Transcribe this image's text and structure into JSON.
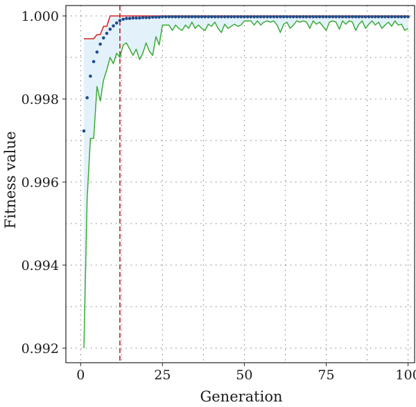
{
  "chart_data": {
    "type": "line",
    "title": "",
    "xlabel": "Generation",
    "ylabel": "Fitness value",
    "xlim": [
      -4.5,
      102
    ],
    "ylim": [
      0.99165,
      1.00025
    ],
    "grid": true,
    "x_ticks": [
      0,
      25,
      50,
      75,
      100
    ],
    "x_tick_labels": [
      "0",
      "25",
      "50",
      "75",
      "100"
    ],
    "y_ticks": [
      0.992,
      0.994,
      0.996,
      0.998,
      1.0
    ],
    "y_tick_labels": [
      "0.992",
      "0.994",
      "0.996",
      "0.998",
      "1.000"
    ],
    "vertical_marker": {
      "x": 12,
      "color": "#b22222",
      "style": "dashed"
    },
    "fill_color": "#e3f1fa",
    "colors": {
      "max": "#d42020",
      "mean": "#1f4e8c",
      "min": "#3aaa35"
    },
    "series": [
      {
        "key": "max",
        "style": "line",
        "x": [
          1,
          2,
          3,
          4,
          5,
          6,
          7,
          8,
          9,
          10,
          11,
          12,
          13,
          14,
          15,
          16,
          17,
          18,
          19,
          20,
          25,
          50,
          75,
          100
        ],
        "values": [
          0.99945,
          0.99945,
          0.99945,
          0.99945,
          0.99955,
          0.99955,
          0.99975,
          0.99975,
          1.0,
          1.0,
          1.0,
          1.0,
          1.0,
          1.0,
          1.0,
          1.0,
          1.0,
          1.0,
          1.0,
          1.0,
          1.0,
          1.0,
          1.0,
          1.0
        ]
      },
      {
        "key": "mean",
        "style": "dots",
        "x": [
          1,
          2,
          3,
          4,
          5,
          6,
          7,
          8,
          9,
          10,
          11,
          12,
          13,
          14,
          15,
          16,
          17,
          18,
          19,
          20,
          21,
          22,
          23,
          24,
          25,
          26,
          27,
          28,
          29,
          30,
          31,
          32,
          33,
          34,
          35,
          36,
          37,
          38,
          39,
          40,
          41,
          42,
          43,
          44,
          45,
          46,
          47,
          48,
          49,
          50,
          51,
          52,
          53,
          54,
          55,
          56,
          57,
          58,
          59,
          60,
          61,
          62,
          63,
          64,
          65,
          66,
          67,
          68,
          69,
          70,
          71,
          72,
          73,
          74,
          75,
          76,
          77,
          78,
          79,
          80,
          81,
          82,
          83,
          84,
          85,
          86,
          87,
          88,
          89,
          90,
          91,
          92,
          93,
          94,
          95,
          96,
          97,
          98,
          99,
          100
        ],
        "values": [
          0.99723,
          0.99803,
          0.99855,
          0.9989,
          0.99913,
          0.99932,
          0.99947,
          0.99958,
          0.99968,
          0.99976,
          0.99983,
          0.99989,
          0.99992,
          0.99994,
          0.99994,
          0.99995,
          0.99995,
          0.99995,
          0.99996,
          0.99996,
          0.99996,
          0.99997,
          0.99997,
          0.99997,
          0.99998,
          0.99998,
          0.99998,
          0.99998,
          0.99998,
          0.99998,
          0.99998,
          0.99998,
          0.99998,
          0.99998,
          0.99998,
          0.99998,
          0.99998,
          0.99998,
          0.99998,
          0.99998,
          0.99998,
          0.99998,
          0.99998,
          0.99998,
          0.99998,
          0.99998,
          0.99998,
          0.99998,
          0.99998,
          0.99998,
          0.99998,
          0.99998,
          0.99998,
          0.99998,
          0.99998,
          0.99998,
          0.99998,
          0.99998,
          0.99998,
          0.99998,
          0.99998,
          0.99998,
          0.99998,
          0.99998,
          0.99998,
          0.99998,
          0.99998,
          0.99998,
          0.99998,
          0.99998,
          0.99998,
          0.99998,
          0.99998,
          0.99998,
          0.99998,
          0.99998,
          0.99998,
          0.99998,
          0.99998,
          0.99998,
          0.99998,
          0.99998,
          0.99998,
          0.99998,
          0.99998,
          0.99998,
          0.99998,
          0.99998,
          0.99998,
          0.99998,
          0.99998,
          0.99998,
          0.99998,
          0.99998,
          0.99998,
          0.99998,
          0.99998,
          0.99998,
          0.99998,
          0.99998
        ]
      },
      {
        "key": "min",
        "style": "line",
        "x": [
          1,
          2,
          3,
          4,
          5,
          6,
          7,
          8,
          9,
          10,
          11,
          12,
          13,
          14,
          15,
          16,
          17,
          18,
          19,
          20,
          21,
          22,
          23,
          24,
          25,
          26,
          27,
          28,
          29,
          30,
          31,
          32,
          33,
          34,
          35,
          36,
          37,
          38,
          39,
          40,
          41,
          42,
          43,
          44,
          45,
          46,
          47,
          48,
          49,
          50,
          51,
          52,
          53,
          54,
          55,
          56,
          57,
          58,
          59,
          60,
          61,
          62,
          63,
          64,
          65,
          66,
          67,
          68,
          69,
          70,
          71,
          72,
          73,
          74,
          75,
          76,
          77,
          78,
          79,
          80,
          81,
          82,
          83,
          84,
          85,
          86,
          87,
          88,
          89,
          90,
          91,
          92,
          93,
          94,
          95,
          96,
          97,
          98,
          99,
          100
        ],
        "values": [
          0.992,
          0.9956,
          0.99705,
          0.99705,
          0.9983,
          0.99795,
          0.99845,
          0.9987,
          0.999,
          0.99885,
          0.9991,
          0.999,
          0.9993,
          0.99935,
          0.9992,
          0.99905,
          0.9992,
          0.99895,
          0.9991,
          0.99935,
          0.99915,
          0.99905,
          0.9995,
          0.9993,
          0.99978,
          0.99978,
          0.99978,
          0.99965,
          0.99978,
          0.9997,
          0.99965,
          0.99978,
          0.9997,
          0.99985,
          0.9997,
          0.99978,
          0.9997,
          0.99965,
          0.9998,
          0.99975,
          0.99985,
          0.9997,
          0.9996,
          0.9998,
          0.9997,
          0.99975,
          0.9998,
          0.99975,
          0.99978,
          0.99988,
          0.99988,
          0.99988,
          0.99978,
          0.99988,
          0.99978,
          0.99985,
          0.99988,
          0.99985,
          0.99988,
          0.99978,
          0.9996,
          0.9998,
          0.99985,
          0.9997,
          0.99978,
          0.99988,
          0.99985,
          0.99988,
          0.99985,
          0.9997,
          0.99988,
          0.9998,
          0.99985,
          0.99975,
          0.99965,
          0.99985,
          0.99988,
          0.99985,
          0.99968,
          0.99988,
          0.9998,
          0.99988,
          0.99985,
          0.99965,
          0.9998,
          0.99988,
          0.9997,
          0.9998,
          0.99988,
          0.99978,
          0.99985,
          0.9997,
          0.99978,
          0.99985,
          0.99975,
          0.99988,
          0.99978,
          0.9998,
          0.99965,
          0.9997
        ]
      }
    ]
  }
}
